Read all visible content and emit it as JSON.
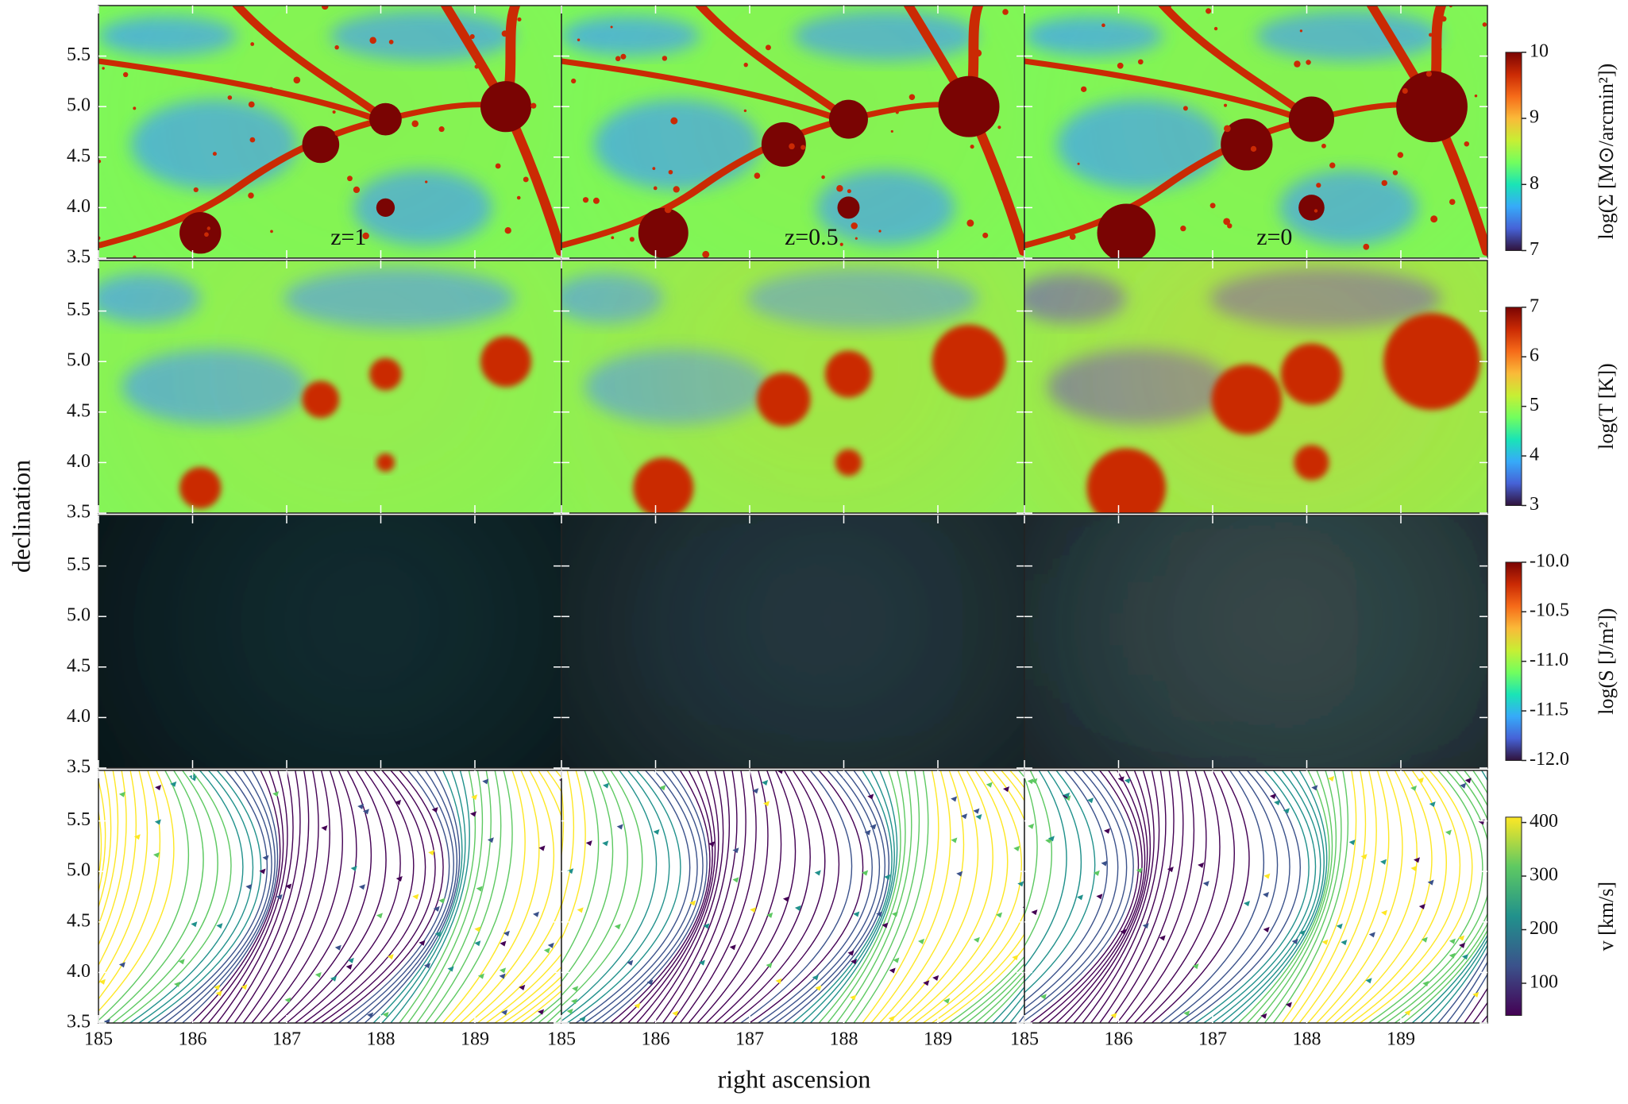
{
  "chart_data": {
    "type": "image-grid",
    "x_label": "right ascension",
    "y_label": "declination",
    "xlim": [
      185,
      189.92
    ],
    "xticks": [
      185,
      186,
      187,
      188,
      189
    ],
    "ylim": [
      3.5,
      6.0
    ],
    "yticks": [
      {
        "value": 3.5,
        "label": "3.5"
      },
      {
        "value": 4,
        "label": "4.0"
      },
      {
        "value": 4.5,
        "label": "4.5"
      },
      {
        "value": 5,
        "label": "5.0"
      },
      {
        "value": 5.5,
        "label": "5.5"
      }
    ],
    "columns": [
      "z=1",
      "z=0.5",
      "z=0"
    ],
    "colorbars": [
      {
        "label": "log(Σ [M⊙/arcmin²])",
        "lim": [
          7,
          10
        ],
        "ticks": [
          7,
          8,
          9,
          10
        ],
        "colors": [
          "#30123b",
          "#4662d7",
          "#36aaf9",
          "#1ae4b6",
          "#72fe5e",
          "#c7ef34",
          "#faba39",
          "#f66b19",
          "#ca2a04",
          "#7a0403"
        ]
      },
      {
        "label": "log(T [K])",
        "lim": [
          3,
          7
        ],
        "ticks": [
          3,
          4,
          5,
          6,
          7
        ],
        "colors": [
          "#30123b",
          "#4662d7",
          "#36aaf9",
          "#1ae4b6",
          "#72fe5e",
          "#c7ef34",
          "#faba39",
          "#f66b19",
          "#ca2a04",
          "#7a0403"
        ]
      },
      {
        "label": "log(S [J/m²])",
        "lim": [
          -12,
          -10
        ],
        "ticks": [
          {
            "value": -12,
            "label": "-12.0"
          },
          {
            "value": -11.5,
            "label": "-11.5"
          },
          {
            "value": -11,
            "label": "-11.0"
          },
          {
            "value": -10.5,
            "label": "-10.5"
          },
          {
            "value": -10,
            "label": "-10.0"
          }
        ],
        "colors": [
          "#30123b",
          "#4662d7",
          "#36aaf9",
          "#1ae4b6",
          "#72fe5e",
          "#c7ef34",
          "#faba39",
          "#f66b19",
          "#ca2a04",
          "#7a0403"
        ]
      },
      {
        "label": "v [km/s]",
        "lim": [
          40,
          410
        ],
        "ticks": [
          100,
          200,
          300,
          400
        ],
        "colors": [
          "#440154",
          "#3b528b",
          "#21918c",
          "#5ec962",
          "#fde725"
        ]
      }
    ]
  }
}
